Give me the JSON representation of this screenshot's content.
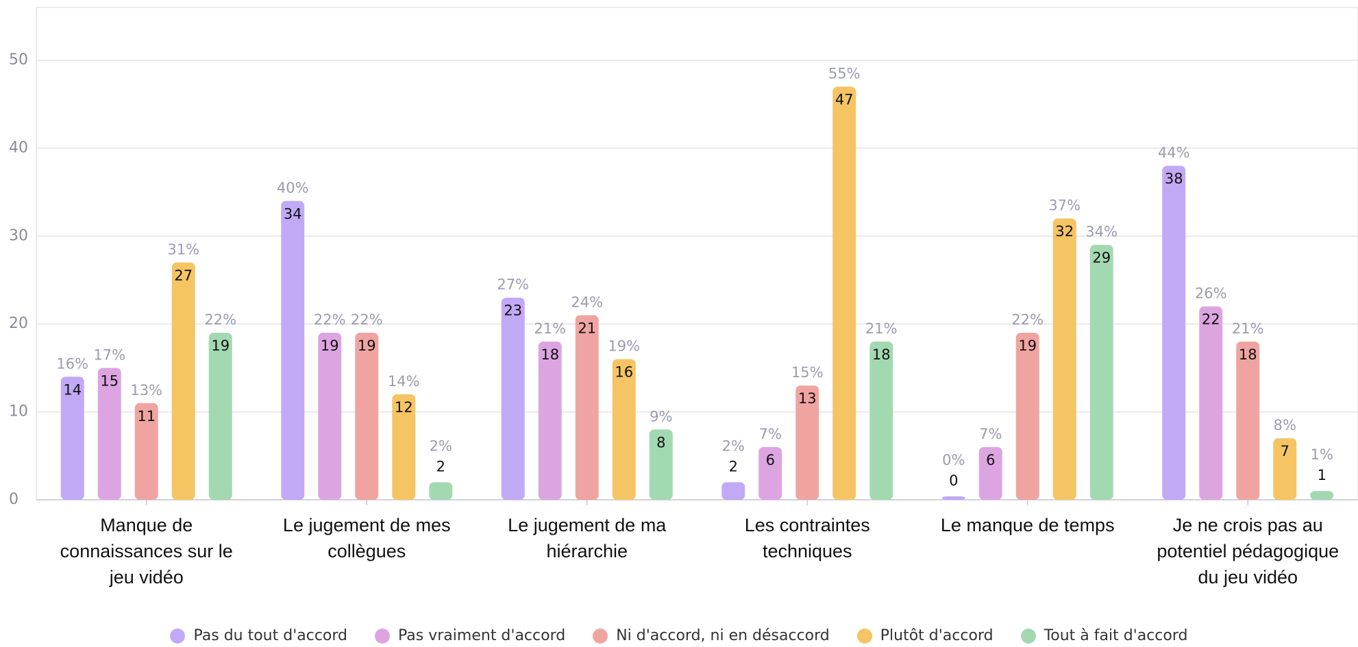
{
  "chart_data": {
    "type": "bar",
    "categories": [
      "Manque de connaissances sur le jeu vidéo",
      "Le jugement de mes collègues",
      "Le jugement de ma hiérarchie",
      "Les contraintes techniques",
      "Le manque de temps",
      "Je ne crois pas au potentiel pédagogique du jeu vidéo"
    ],
    "series": [
      {
        "name": "Pas du tout d'accord",
        "color": "#c1a9f6",
        "values": [
          14,
          34,
          23,
          2,
          0,
          38
        ],
        "percent_labels": [
          "16%",
          "40%",
          "27%",
          "2%",
          "0%",
          "44%"
        ]
      },
      {
        "name": "Pas vraiment d'accord",
        "color": "#dca5e1",
        "values": [
          15,
          19,
          18,
          6,
          6,
          22
        ],
        "percent_labels": [
          "17%",
          "22%",
          "21%",
          "7%",
          "7%",
          "26%"
        ]
      },
      {
        "name": "Ni d'accord, ni en désaccord",
        "color": "#f0a4a1",
        "values": [
          11,
          19,
          21,
          13,
          19,
          18
        ],
        "percent_labels": [
          "13%",
          "22%",
          "24%",
          "15%",
          "22%",
          "21%"
        ]
      },
      {
        "name": "Plutôt d'accord",
        "color": "#f5c463",
        "values": [
          27,
          12,
          16,
          47,
          32,
          7
        ],
        "percent_labels": [
          "31%",
          "14%",
          "19%",
          "55%",
          "37%",
          "8%"
        ]
      },
      {
        "name": "Tout à fait d'accord",
        "color": "#a3d9b1",
        "values": [
          19,
          2,
          8,
          18,
          29,
          1
        ],
        "percent_labels": [
          "22%",
          "2%",
          "9%",
          "21%",
          "34%",
          "1%"
        ]
      }
    ],
    "ylim": [
      0,
      56
    ],
    "yticks": [
      0,
      10,
      20,
      30,
      40,
      50
    ],
    "grid": true,
    "legend": "bottom"
  }
}
